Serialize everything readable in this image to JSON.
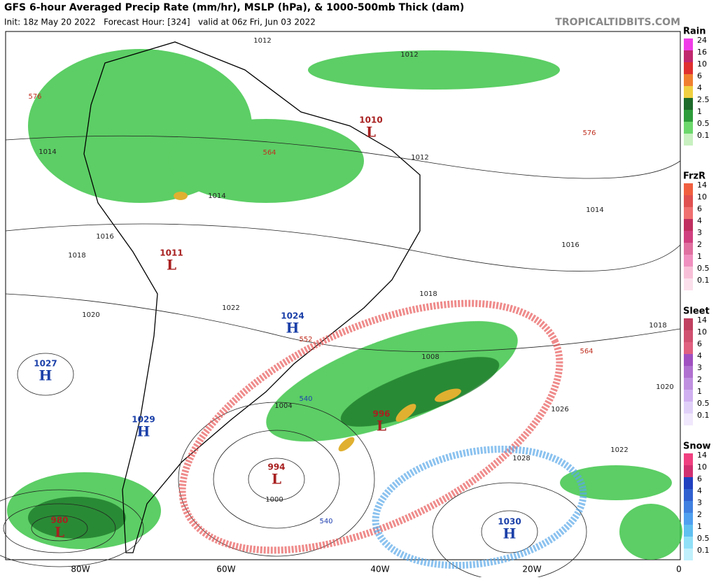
{
  "header": {
    "title": "GFS 6-hour Averaged Precip Rate (mm/hr), MSLP (hPa), & 1000-500mb Thick (dam)",
    "subtitle": "Init: 18z May 20 2022   Forecast Hour: [324]   valid at 06z Fri, Jun 03 2022",
    "source": "TROPICALTIDBITS.COM"
  },
  "legends": [
    {
      "title": "Rain",
      "labels": [
        "24",
        "16",
        "10",
        "6",
        "4",
        "2.5",
        "1",
        "0.5",
        "0.1"
      ]
    },
    {
      "title": "FrzR",
      "labels": [
        "14",
        "10",
        "6",
        "4",
        "3",
        "2",
        "1",
        "0.5",
        "0.1"
      ]
    },
    {
      "title": "Sleet",
      "labels": [
        "14",
        "10",
        "6",
        "4",
        "3",
        "2",
        "1",
        "0.5",
        "0.1"
      ]
    },
    {
      "title": "Snow",
      "labels": [
        "14",
        "10",
        "6",
        "4",
        "3",
        "2",
        "1",
        "0.5",
        "0.1"
      ]
    }
  ],
  "centers": [
    {
      "pressure": "1010",
      "letter": "L"
    },
    {
      "pressure": "1011",
      "letter": "L"
    },
    {
      "pressure": "1024",
      "letter": "H"
    },
    {
      "pressure": "1027",
      "letter": "H"
    },
    {
      "pressure": "1029",
      "letter": "H"
    },
    {
      "pressure": "996",
      "letter": "L"
    },
    {
      "pressure": "994",
      "letter": "L"
    },
    {
      "pressure": "980",
      "letter": "L"
    },
    {
      "pressure": "1030",
      "letter": "H"
    }
  ],
  "isobar_labels": [
    "1012",
    "1012",
    "1012",
    "1014",
    "1014",
    "1014",
    "1016",
    "1016",
    "1018",
    "1018",
    "1020",
    "1022",
    "1008",
    "1004",
    "1000",
    "1026",
    "1028",
    "1022",
    "1020",
    "1018"
  ],
  "thickness_labels": [
    "576",
    "576",
    "564",
    "564",
    "552",
    "540",
    "540"
  ],
  "longitudes": [
    "80W",
    "60W",
    "40W",
    "20W",
    "0"
  ]
}
